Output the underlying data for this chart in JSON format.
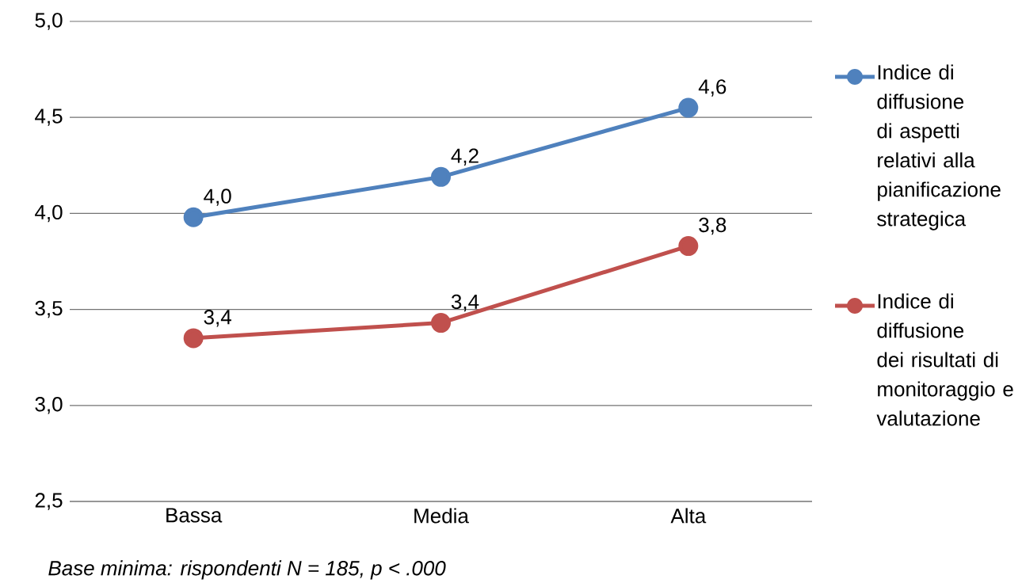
{
  "chart_data": {
    "type": "line",
    "categories": [
      "Bassa",
      "Media",
      "Alta"
    ],
    "series": [
      {
        "name": "Indice di diffusione di aspetti relativi alla pianificazione strategica",
        "color": "#4f81bd",
        "values": [
          3.98,
          4.19,
          4.55
        ],
        "value_labels": [
          "4,0",
          "4,2",
          "4,6"
        ]
      },
      {
        "name": "Indice di diffusione dei risultati di monitoraggio e valutazione",
        "color": "#c0504d",
        "values": [
          3.35,
          3.43,
          3.83
        ],
        "value_labels": [
          "3,4",
          "3,4",
          "3,8"
        ]
      }
    ],
    "ylim": [
      2.5,
      5.0
    ],
    "yticks": [
      {
        "value": 2.5,
        "label": "2,5"
      },
      {
        "value": 3.0,
        "label": "3,0"
      },
      {
        "value": 3.5,
        "label": "3,5"
      },
      {
        "value": 4.0,
        "label": "4,0"
      },
      {
        "value": 4.5,
        "label": "4,5"
      },
      {
        "value": 5.0,
        "label": "5,0"
      }
    ],
    "grid": "y",
    "legend": "right",
    "marker": "circle",
    "line_style": "solid",
    "annotations": [
      "Base minima: rispondenti N = 185, p < .000"
    ]
  }
}
